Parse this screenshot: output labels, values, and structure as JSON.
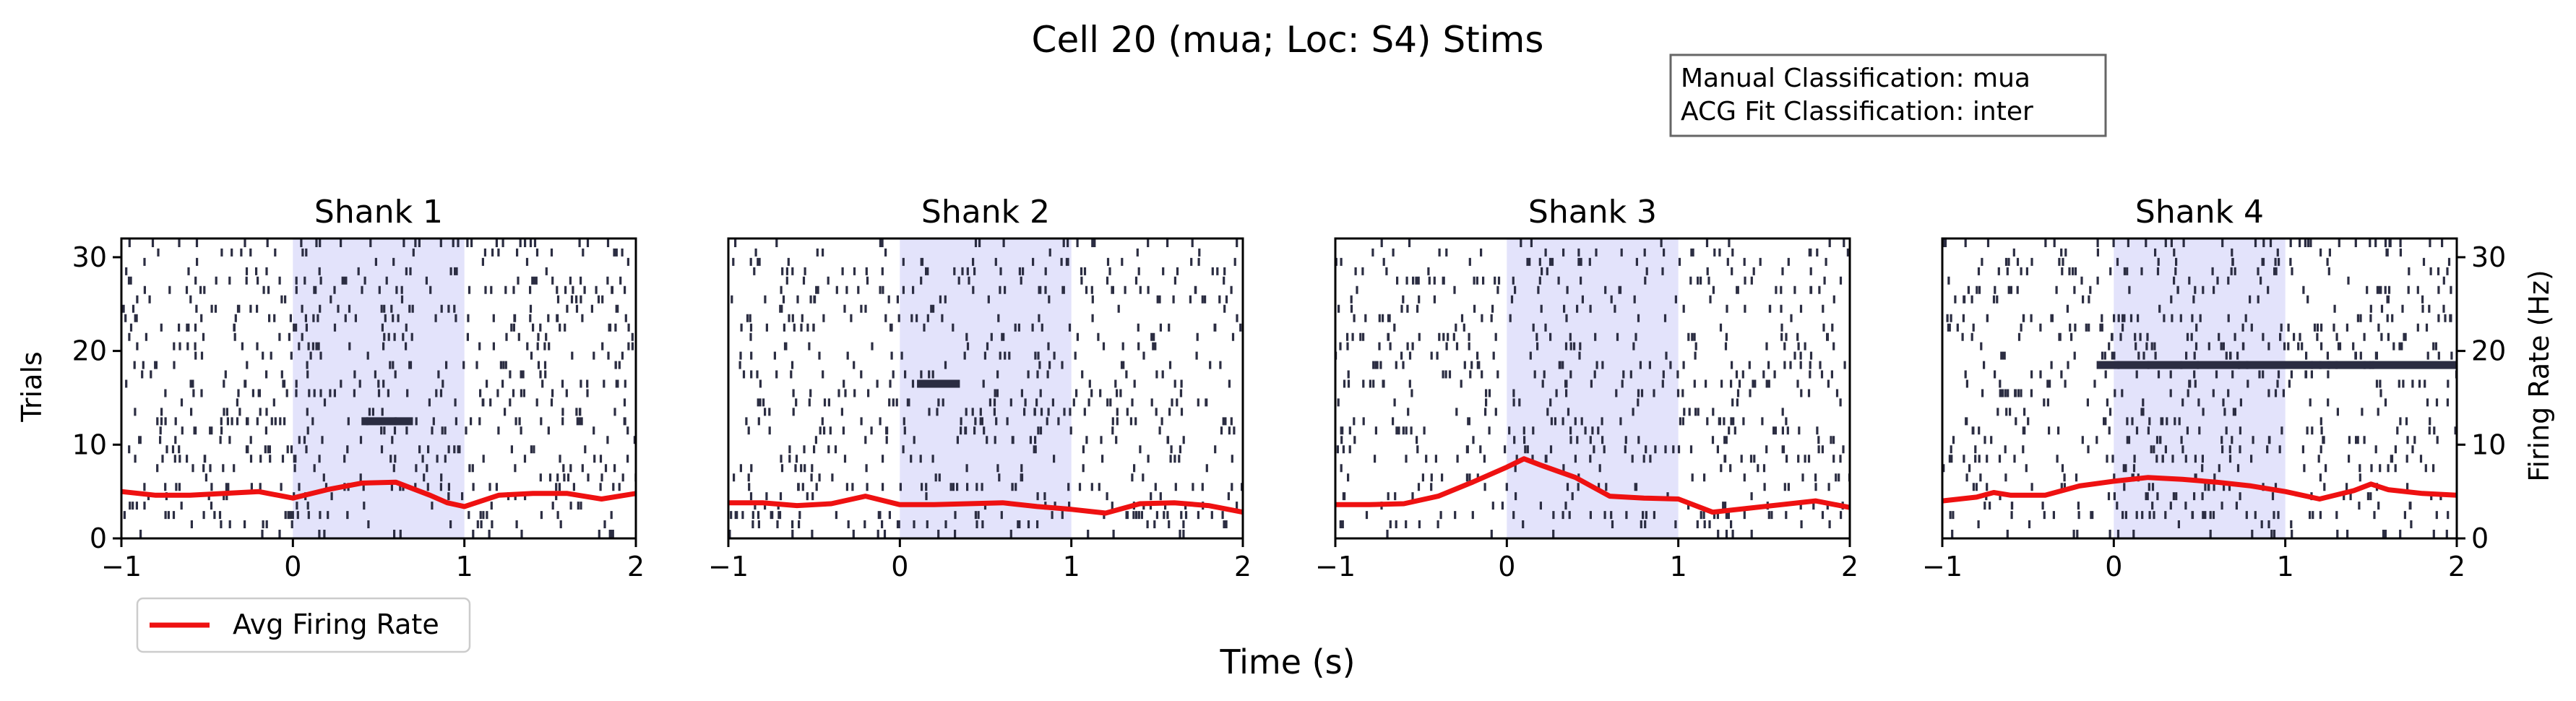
{
  "title": "Cell 20 (mua; Loc: S4) Stims",
  "info_box": {
    "line1": "Manual Classification: mua",
    "line2": "ACG Fit Classification: inter"
  },
  "legend": {
    "label": "Avg Firing Rate",
    "color": "#ee1111",
    "placement": "lower-left"
  },
  "xlabel": "Time (s)",
  "ylabel_left": "Trials",
  "ylabel_right": "Firing Rate (Hz)",
  "colors": {
    "raster": "#2b2d42",
    "stim_shade": "#e3e3fb",
    "rate_line": "#ee1111"
  },
  "chart_data": {
    "type": "raster",
    "xlim": [
      -1,
      2
    ],
    "trial_ylim": [
      0,
      32
    ],
    "rate_ylim": [
      0,
      32
    ],
    "xticks": [
      -1,
      0,
      1,
      2
    ],
    "yticks_trials": [
      0,
      10,
      20,
      30
    ],
    "yticks_rate": [
      0,
      10,
      20,
      30
    ],
    "stim_window": [
      0,
      1
    ],
    "n_trials": 32,
    "panels": [
      {
        "title": "Shank 1",
        "rate": {
          "x": [
            -1,
            -0.8,
            -0.6,
            -0.4,
            -0.2,
            0,
            0.2,
            0.4,
            0.6,
            0.8,
            0.9,
            1,
            1.2,
            1.4,
            1.6,
            1.8,
            2
          ],
          "y": [
            5.0,
            4.6,
            4.6,
            4.8,
            5.0,
            4.3,
            5.2,
            5.9,
            6.0,
            4.6,
            3.8,
            3.4,
            4.6,
            4.8,
            4.8,
            4.2,
            4.8
          ]
        },
        "dense_trials": [
          {
            "trial": 12,
            "t0": 0.4,
            "t1": 0.7
          }
        ]
      },
      {
        "title": "Shank 2",
        "rate": {
          "x": [
            -1,
            -0.8,
            -0.6,
            -0.4,
            -0.2,
            0,
            0.2,
            0.4,
            0.6,
            0.8,
            1,
            1.2,
            1.4,
            1.6,
            1.8,
            2
          ],
          "y": [
            3.8,
            3.8,
            3.5,
            3.7,
            4.5,
            3.6,
            3.6,
            3.7,
            3.8,
            3.4,
            3.1,
            2.7,
            3.7,
            3.8,
            3.5,
            2.8
          ]
        },
        "dense_trials": [
          {
            "trial": 16,
            "t0": 0.1,
            "t1": 0.35
          }
        ]
      },
      {
        "title": "Shank 3",
        "rate": {
          "x": [
            -1,
            -0.8,
            -0.6,
            -0.4,
            -0.2,
            0,
            0.1,
            0.2,
            0.4,
            0.6,
            0.8,
            1,
            1.2,
            1.4,
            1.6,
            1.8,
            2
          ],
          "y": [
            3.6,
            3.6,
            3.7,
            4.5,
            6.0,
            7.6,
            8.5,
            7.8,
            6.5,
            4.5,
            4.3,
            4.2,
            2.8,
            3.2,
            3.6,
            4.0,
            3.3
          ]
        },
        "dense_trials": []
      },
      {
        "title": "Shank 4",
        "rate": {
          "x": [
            -1,
            -0.8,
            -0.7,
            -0.6,
            -0.4,
            -0.2,
            0,
            0.2,
            0.4,
            0.6,
            0.8,
            1,
            1.2,
            1.4,
            1.5,
            1.6,
            1.8,
            2
          ],
          "y": [
            4.0,
            4.4,
            4.9,
            4.6,
            4.6,
            5.6,
            6.1,
            6.5,
            6.3,
            6.0,
            5.6,
            5.0,
            4.2,
            5.1,
            5.8,
            5.2,
            4.8,
            4.6
          ]
        },
        "dense_trials": [
          {
            "trial": 18,
            "t0": -0.1,
            "t1": 2.0
          }
        ]
      }
    ]
  }
}
